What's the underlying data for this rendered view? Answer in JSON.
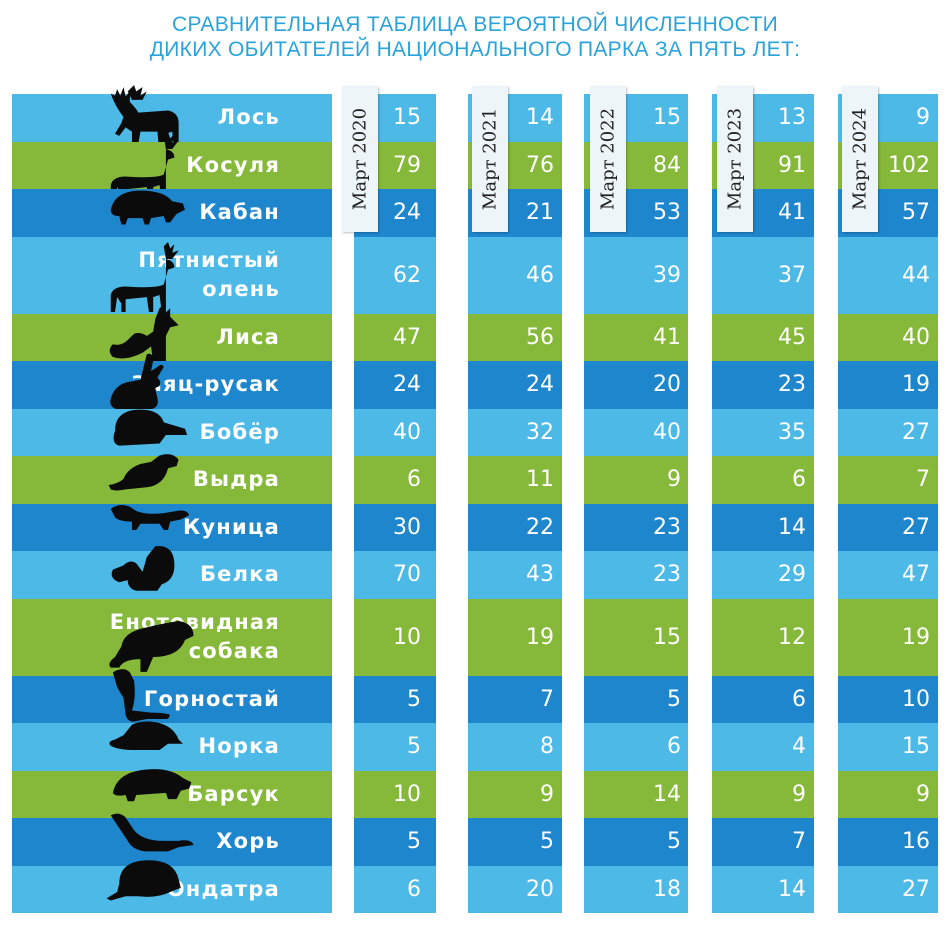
{
  "title_line1": "СРАВНИТЕЛЬНАЯ ТАБЛИЦА ВЕРОЯТНОЙ ЧИСЛЕННОСТИ",
  "title_line2": "ДИКИХ ОБИТАТЕЛЕЙ НАЦИОНАЛЬНОГО ПАРКА ЗА ПЯТЬ ЛЕТ:",
  "colors": {
    "light_blue": "#4db9e7",
    "green": "#86b93a",
    "dark_blue": "#1e86cc",
    "title": "#2aa3da"
  },
  "chart_data": {
    "type": "table",
    "title": "СРАВНИТЕЛЬНАЯ ТАБЛИЦА ВЕРОЯТНОЙ ЧИСЛЕННОСТИ ДИКИХ ОБИТАТЕЛЕЙ НАЦИОНАЛЬНОГО ПАРКА ЗА ПЯТЬ ЛЕТ:",
    "columns": [
      "Март 2020",
      "Март 2021",
      "Март 2022",
      "Март 2023",
      "Март 2024"
    ],
    "rows": [
      {
        "name": [
          "Лось"
        ],
        "icon": "moose-icon",
        "color": "light_blue",
        "values": [
          15,
          14,
          15,
          13,
          9
        ]
      },
      {
        "name": [
          "Косуля"
        ],
        "icon": "roe-deer-icon",
        "color": "green",
        "values": [
          79,
          76,
          84,
          91,
          102
        ]
      },
      {
        "name": [
          "Кабан"
        ],
        "icon": "boar-icon",
        "color": "dark_blue",
        "values": [
          24,
          21,
          53,
          41,
          57
        ]
      },
      {
        "name": [
          "Пятнистый",
          "олень"
        ],
        "icon": "sika-deer-icon",
        "color": "light_blue",
        "values": [
          62,
          46,
          39,
          37,
          44
        ]
      },
      {
        "name": [
          "Лиса"
        ],
        "icon": "fox-icon",
        "color": "green",
        "values": [
          47,
          56,
          41,
          45,
          40
        ]
      },
      {
        "name": [
          "Заяц-русак"
        ],
        "icon": "hare-icon",
        "color": "dark_blue",
        "values": [
          24,
          24,
          20,
          23,
          19
        ]
      },
      {
        "name": [
          "Бобёр"
        ],
        "icon": "beaver-icon",
        "color": "light_blue",
        "values": [
          40,
          32,
          40,
          35,
          27
        ]
      },
      {
        "name": [
          "Выдра"
        ],
        "icon": "otter-icon",
        "color": "green",
        "values": [
          6,
          11,
          9,
          6,
          7
        ]
      },
      {
        "name": [
          "Куница"
        ],
        "icon": "marten-icon",
        "color": "dark_blue",
        "values": [
          30,
          22,
          23,
          14,
          27
        ]
      },
      {
        "name": [
          "Белка"
        ],
        "icon": "squirrel-icon",
        "color": "light_blue",
        "values": [
          70,
          43,
          23,
          29,
          47
        ]
      },
      {
        "name": [
          "Енотовидная",
          "собака"
        ],
        "icon": "raccoon-dog-icon",
        "color": "green",
        "values": [
          10,
          19,
          15,
          12,
          19
        ]
      },
      {
        "name": [
          "Горностай"
        ],
        "icon": "stoat-icon",
        "color": "dark_blue",
        "values": [
          5,
          7,
          5,
          6,
          10
        ]
      },
      {
        "name": [
          "Норка"
        ],
        "icon": "mink-icon",
        "color": "light_blue",
        "values": [
          5,
          8,
          6,
          4,
          15
        ]
      },
      {
        "name": [
          "Барсук"
        ],
        "icon": "badger-icon",
        "color": "green",
        "values": [
          10,
          9,
          14,
          9,
          9
        ]
      },
      {
        "name": [
          "Хорь"
        ],
        "icon": "polecat-icon",
        "color": "dark_blue",
        "values": [
          5,
          5,
          5,
          7,
          16
        ]
      },
      {
        "name": [
          "Ондатра"
        ],
        "icon": "muskrat-icon",
        "color": "light_blue",
        "values": [
          6,
          20,
          18,
          14,
          27
        ]
      }
    ]
  }
}
